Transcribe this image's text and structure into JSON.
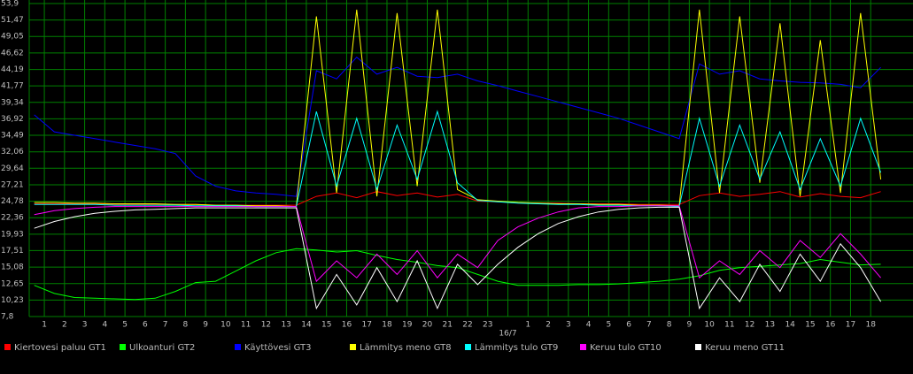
{
  "chart_data": {
    "type": "line",
    "x": [
      0.5,
      1.5,
      2.5,
      3.5,
      4.5,
      5.5,
      6.5,
      7.5,
      8.5,
      9.5,
      10.5,
      11.5,
      12.5,
      13.5,
      14.5,
      15.5,
      16.5,
      17.5,
      18.5,
      19.5,
      20.5,
      21.5,
      22.5,
      23.5,
      24.5,
      25.5,
      26.5,
      27.5,
      28.5,
      29.5,
      30.5,
      31.5,
      32.5,
      33.5,
      34.5,
      35.5,
      36.5,
      37.5,
      38.5,
      39.5,
      40.5,
      41.5,
      42.5
    ],
    "xlim": [
      0.25,
      44.1
    ],
    "xticks": [
      1,
      2,
      3,
      4,
      5,
      6,
      7,
      8,
      9,
      10,
      11,
      12,
      13,
      14,
      15,
      16,
      17,
      18,
      19,
      20,
      21,
      22,
      23,
      {
        "value": 24,
        "label": "16/7"
      },
      {
        "value": 25,
        "label": "1"
      },
      {
        "value": 26,
        "label": "2"
      },
      {
        "value": 27,
        "label": "3"
      },
      {
        "value": 28,
        "label": "4"
      },
      {
        "value": 29,
        "label": "5"
      },
      {
        "value": 30,
        "label": "6"
      },
      {
        "value": 31,
        "label": "7"
      },
      {
        "value": 32,
        "label": "8"
      },
      {
        "value": 33,
        "label": "9"
      },
      {
        "value": 34,
        "label": "10"
      },
      {
        "value": 35,
        "label": "11"
      },
      {
        "value": 36,
        "label": "12"
      },
      {
        "value": 37,
        "label": "13"
      },
      {
        "value": 38,
        "label": "14"
      },
      {
        "value": 39,
        "label": "15"
      },
      {
        "value": 40,
        "label": "16"
      },
      {
        "value": 41,
        "label": "17"
      },
      {
        "value": 42,
        "label": "18"
      }
    ],
    "ylim": [
      7.8,
      53.9
    ],
    "yticks": [
      {
        "value": 7.8,
        "label": "7,8"
      },
      {
        "value": 10.23,
        "label": "10,23"
      },
      {
        "value": 12.65,
        "label": "12,65"
      },
      {
        "value": 15.08,
        "label": "15,08"
      },
      {
        "value": 17.51,
        "label": "17,51"
      },
      {
        "value": 19.93,
        "label": "19,93"
      },
      {
        "value": 22.36,
        "label": "22,36"
      },
      {
        "value": 24.78,
        "label": "24,78"
      },
      {
        "value": 27.21,
        "label": "27,21"
      },
      {
        "value": 29.64,
        "label": "29,64"
      },
      {
        "value": 32.06,
        "label": "32,06"
      },
      {
        "value": 34.49,
        "label": "34,49"
      },
      {
        "value": 36.92,
        "label": "36,92"
      },
      {
        "value": 39.34,
        "label": "39,34"
      },
      {
        "value": 41.77,
        "label": "41,77"
      },
      {
        "value": 44.19,
        "label": "44,19"
      },
      {
        "value": 46.62,
        "label": "46,62"
      },
      {
        "value": 49.05,
        "label": "49,05"
      },
      {
        "value": 51.47,
        "label": "51,47"
      },
      {
        "value": 53.9,
        "label": "53,9"
      }
    ],
    "grid": true,
    "grid_color": "#008000",
    "series": [
      {
        "name": "Kiertovesi paluu GT1",
        "color": "#ff0000",
        "values": [
          24.4,
          24.4,
          24.4,
          24.4,
          24.3,
          24.3,
          24.3,
          24.3,
          24.3,
          24.2,
          24.2,
          24.2,
          24.2,
          24.2,
          25.5,
          26.0,
          25.3,
          26.2,
          25.6,
          26.0,
          25.4,
          25.8,
          24.8,
          24.7,
          24.6,
          24.5,
          24.5,
          24.4,
          24.4,
          24.4,
          24.3,
          24.3,
          24.3,
          25.6,
          26.0,
          25.5,
          25.8,
          26.2,
          25.4,
          25.9,
          25.5,
          25.3,
          26.2
        ]
      },
      {
        "name": "Ulkoanturi GT2",
        "color": "#00ff00",
        "values": [
          12.4,
          11.2,
          10.6,
          10.5,
          10.4,
          10.3,
          10.5,
          11.5,
          12.8,
          13.0,
          14.5,
          16.0,
          17.2,
          17.8,
          17.6,
          17.3,
          17.5,
          16.8,
          16.2,
          15.8,
          15.3,
          15.0,
          14.0,
          13.0,
          12.4,
          12.4,
          12.4,
          12.5,
          12.5,
          12.6,
          12.8,
          13.0,
          13.3,
          13.8,
          14.6,
          15.0,
          15.2,
          15.4,
          15.6,
          16.2,
          15.8,
          15.4,
          15.5
        ]
      },
      {
        "name": "Käyttövesi GT3",
        "color": "#0000ff",
        "values": [
          37.5,
          35.0,
          34.5,
          34.0,
          33.5,
          33.0,
          32.5,
          31.8,
          28.5,
          27.0,
          26.3,
          26.0,
          25.8,
          25.5,
          44.0,
          42.8,
          46.0,
          43.5,
          44.5,
          43.2,
          43.0,
          43.5,
          42.5,
          41.8,
          41.0,
          40.2,
          39.4,
          38.6,
          37.8,
          37.0,
          36.0,
          35.0,
          34.0,
          45.0,
          43.5,
          44.0,
          42.8,
          42.5,
          42.3,
          42.2,
          42.0,
          41.5,
          44.5
        ]
      },
      {
        "name": "Lämmitys meno GT8",
        "color": "#ffff00",
        "values": [
          24.6,
          24.6,
          24.5,
          24.5,
          24.4,
          24.4,
          24.4,
          24.3,
          24.3,
          24.2,
          24.2,
          24.1,
          24.1,
          24.0,
          52.0,
          26.0,
          53.0,
          25.5,
          52.5,
          27.0,
          53.0,
          26.5,
          25.0,
          24.8,
          24.6,
          24.5,
          24.4,
          24.4,
          24.3,
          24.3,
          24.2,
          24.2,
          24.1,
          53.0,
          26.0,
          52.0,
          27.5,
          51.0,
          25.5,
          48.5,
          26.0,
          52.5,
          28.0
        ]
      },
      {
        "name": "Lämmitys tulo GT9",
        "color": "#00ffff",
        "values": [
          24.3,
          24.3,
          24.3,
          24.3,
          24.2,
          24.2,
          24.2,
          24.2,
          24.1,
          24.1,
          24.1,
          24.0,
          24.0,
          24.0,
          38.0,
          27.0,
          37.0,
          26.5,
          36.0,
          28.0,
          38.0,
          27.5,
          24.9,
          24.7,
          24.5,
          24.4,
          24.3,
          24.3,
          24.2,
          24.2,
          24.1,
          24.1,
          24.0,
          37.0,
          27.0,
          36.0,
          28.0,
          35.0,
          26.5,
          34.0,
          27.0,
          37.0,
          29.0
        ]
      },
      {
        "name": "Keruu tulo GT10",
        "color": "#ff00ff",
        "values": [
          22.8,
          23.4,
          23.7,
          23.9,
          24.0,
          24.0,
          24.0,
          24.0,
          24.0,
          24.0,
          24.0,
          24.0,
          24.0,
          24.0,
          13.0,
          16.0,
          13.5,
          17.0,
          14.0,
          17.5,
          13.5,
          17.0,
          15.0,
          19.0,
          21.0,
          22.3,
          23.2,
          23.8,
          24.0,
          24.0,
          24.1,
          24.1,
          24.1,
          13.5,
          16.0,
          14.0,
          17.5,
          15.0,
          19.0,
          16.5,
          20.0,
          17.0,
          13.5
        ]
      },
      {
        "name": "Keruu meno GT11",
        "color": "#ffffff",
        "values": [
          20.8,
          21.8,
          22.5,
          23.0,
          23.3,
          23.5,
          23.6,
          23.7,
          23.8,
          23.8,
          23.8,
          23.8,
          23.8,
          23.8,
          9.0,
          14.0,
          9.5,
          15.0,
          10.0,
          16.0,
          9.0,
          15.5,
          12.5,
          15.5,
          18.0,
          20.0,
          21.5,
          22.5,
          23.2,
          23.6,
          23.8,
          23.9,
          23.9,
          9.0,
          13.5,
          10.0,
          15.5,
          11.5,
          17.0,
          13.0,
          18.5,
          15.0,
          10.0
        ]
      }
    ]
  }
}
